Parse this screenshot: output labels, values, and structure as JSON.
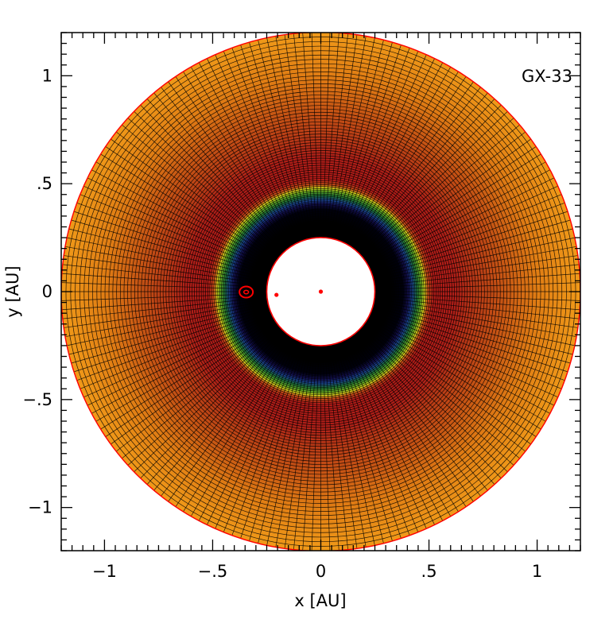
{
  "chart_data": {
    "type": "heatmap",
    "title": "GX-33",
    "xlabel": "x [AU]",
    "ylabel": "y [AU]",
    "xlim": [
      -1.2,
      1.2
    ],
    "ylim": [
      -1.2,
      1.2
    ],
    "x_ticks": [
      {
        "value": -1,
        "label": "−1"
      },
      {
        "value": -0.5,
        "label": "−.5"
      },
      {
        "value": 0,
        "label": "0"
      },
      {
        "value": 0.5,
        "label": ".5"
      },
      {
        "value": 1,
        "label": "1"
      }
    ],
    "y_ticks": [
      {
        "value": 1,
        "label": "1"
      },
      {
        "value": 0.5,
        "label": ".5"
      },
      {
        "value": 0,
        "label": "0"
      },
      {
        "value": -0.5,
        "label": "−.5"
      },
      {
        "value": -1,
        "label": "−1"
      }
    ],
    "grid": false,
    "disk": {
      "inner_radius_au": 0.25,
      "outer_radius_au": 1.2,
      "radial_cells": 85,
      "azimuthal_cells": 180,
      "radial_profile": [
        {
          "r": 0.25,
          "color": "#000000"
        },
        {
          "r": 0.32,
          "color": "#000000"
        },
        {
          "r": 0.38,
          "color": "#000010"
        },
        {
          "r": 0.405,
          "color": "#151158"
        },
        {
          "r": 0.425,
          "color": "#1c4a9a"
        },
        {
          "r": 0.445,
          "color": "#1e7a3a"
        },
        {
          "r": 0.465,
          "color": "#6bb423"
        },
        {
          "r": 0.48,
          "color": "#d7d41c"
        },
        {
          "r": 0.495,
          "color": "#d05018"
        },
        {
          "r": 0.52,
          "color": "#b31b18"
        },
        {
          "r": 0.62,
          "color": "#af1e18"
        },
        {
          "r": 0.72,
          "color": "#b83a16"
        },
        {
          "r": 0.85,
          "color": "#c85714"
        },
        {
          "r": 1.0,
          "color": "#e07d14"
        },
        {
          "r": 1.2,
          "color": "#f09a19"
        }
      ],
      "edge_color": "#ff0000",
      "mesh_line_color": "#000000"
    },
    "markers": [
      {
        "x": 0,
        "y": 0,
        "kind": "dot"
      },
      {
        "x": -0.205,
        "y": -0.015,
        "kind": "dot"
      },
      {
        "x": -0.345,
        "y": -0.002,
        "kind": "ellipse"
      }
    ],
    "marker_color": "#ff0000"
  }
}
